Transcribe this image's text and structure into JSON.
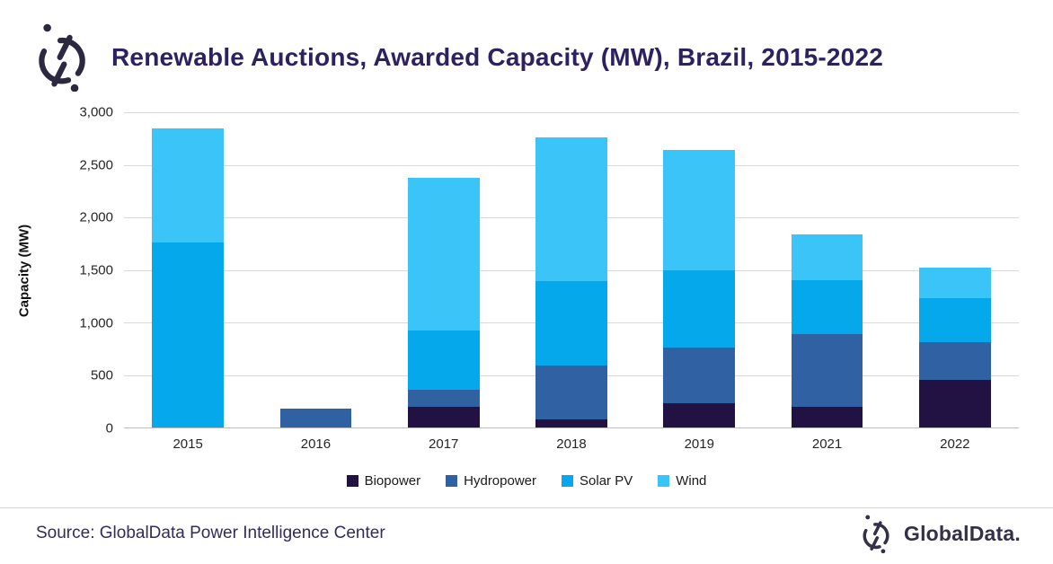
{
  "header": {
    "title": "Renewable Auctions, Awarded Capacity (MW), Brazil, 2015-2022"
  },
  "chart_data": {
    "type": "bar",
    "stacked": true,
    "title": "Renewable Auctions, Awarded Capacity (MW), Brazil, 2015-2022",
    "categories": [
      "2015",
      "2016",
      "2017",
      "2018",
      "2019",
      "2021",
      "2022"
    ],
    "series": [
      {
        "name": "Biopower",
        "color": "#221243",
        "values": [
          0,
          0,
          200,
          80,
          235,
          200,
          450
        ]
      },
      {
        "name": "Hydropower",
        "color": "#3061A3",
        "values": [
          0,
          180,
          155,
          510,
          530,
          685,
          360
        ]
      },
      {
        "name": "Solar PV",
        "color": "#05A8EA",
        "values": [
          1760,
          0,
          570,
          800,
          735,
          520,
          425
        ]
      },
      {
        "name": "Wind",
        "color": "#3BC4F7",
        "values": [
          1090,
          0,
          1450,
          1370,
          1140,
          435,
          285
        ]
      }
    ],
    "totals": [
      2850,
      180,
      2375,
      2760,
      2640,
      1840,
      1520
    ],
    "xlabel": "",
    "ylabel": "Capacity (MW)",
    "ylim": [
      0,
      3000
    ],
    "ytick_labels": [
      "0",
      "500",
      "1,000",
      "1,500",
      "2,000",
      "2,500",
      "3,000"
    ],
    "grid": true,
    "legend_position": "bottom"
  },
  "footer": {
    "source": "Source: GlobalData Power Intelligence Center",
    "brand": "GlobalData."
  },
  "colors": {
    "title_text": "#2E2160",
    "logo": "#2B2840",
    "gridline": "#D9D9D9",
    "axis_line": "#BFBFBF"
  }
}
